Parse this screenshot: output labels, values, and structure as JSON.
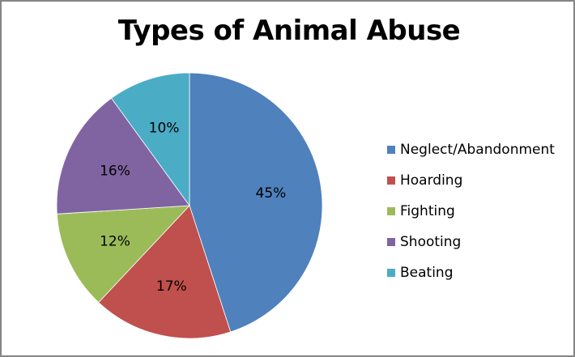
{
  "chart_data": {
    "type": "pie",
    "title": "Types of Animal Abuse",
    "categories": [
      "Neglect/Abandonment",
      "Hoarding",
      "Fighting",
      "Shooting",
      "Beating"
    ],
    "values": [
      45,
      17,
      12,
      16,
      10
    ],
    "labels": [
      "45%",
      "17%",
      "12%",
      "16%",
      "10%"
    ],
    "colors": [
      "#4f81bd",
      "#c0504d",
      "#9bbb59",
      "#8064a2",
      "#4bacc6"
    ],
    "legend_position": "right",
    "start_angle": "12 o'clock, clockwise"
  },
  "legend": {
    "items": [
      {
        "label": "Neglect/Abandonment",
        "color": "#4f81bd"
      },
      {
        "label": "Hoarding",
        "color": "#c0504d"
      },
      {
        "label": "Fighting",
        "color": "#9bbb59"
      },
      {
        "label": "Shooting",
        "color": "#8064a2"
      },
      {
        "label": "Beating",
        "color": "#4bacc6"
      }
    ]
  }
}
